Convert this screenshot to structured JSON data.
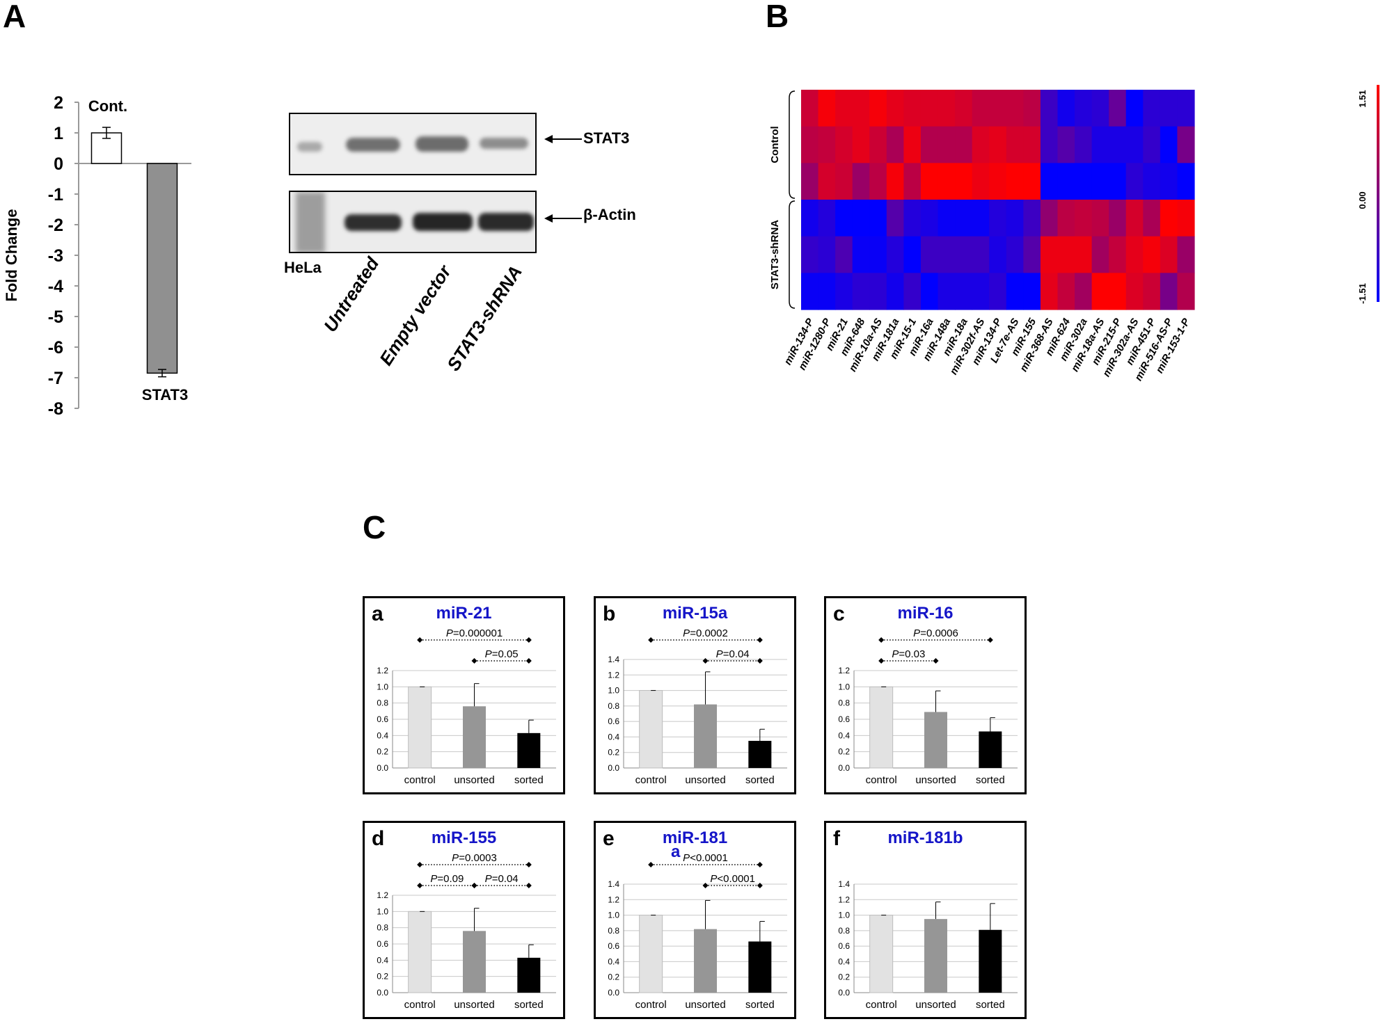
{
  "panels": {
    "A": {
      "letter": "A",
      "chart": {
        "type": "bar",
        "categories": [
          "Cont.",
          "STAT3"
        ],
        "values": [
          1.0,
          -6.85
        ],
        "errors": [
          0.18,
          0.12
        ],
        "colors": [
          "#ffffff",
          "#909090"
        ],
        "ylabel": "Fold Change",
        "ylim": [
          -8,
          2
        ],
        "yticks": [
          2,
          1,
          0,
          -1,
          -2,
          -3,
          -4,
          -5,
          -6,
          -7,
          -8
        ]
      },
      "blot": {
        "bands": [
          "STAT3",
          "β-Actin"
        ],
        "lanes": [
          "HeLa",
          "Untreated",
          "Empty vector",
          "STAT3-shRNA"
        ]
      }
    },
    "B": {
      "letter": "B",
      "row_groups": [
        "Control",
        "STAT3-shRNA"
      ],
      "columns": [
        "miR-134-P",
        "miR-1280-P",
        "miR-21",
        "miR-648",
        "miR-10a-AS",
        "miR-181a",
        "miR-15-1",
        "miR-16a",
        "miR-148a",
        "miR-18a",
        "miR-302f-AS",
        "miR-134-P",
        "Let-7e-AS",
        "miR-155",
        "miR-368-AS",
        "miR-624",
        "miR-302a",
        "miR-18a-AS",
        "miR-215-P",
        "miR-302a-AS",
        "miR-451-P",
        "miR-516-AS-P",
        "miR-153-1-P"
      ],
      "scale_labels": [
        "1.51",
        "0.00",
        "-1.51"
      ],
      "scale_colors": [
        "#ff0000",
        "#0000ff"
      ],
      "matrix": [
        [
          0.9,
          1.4,
          1.2,
          1.2,
          1.4,
          1.2,
          1.1,
          1.1,
          1.1,
          1.0,
          0.8,
          0.8,
          0.8,
          0.7,
          -0.8,
          -1.3,
          -1.1,
          -1.0,
          -0.3,
          -1.5,
          -1.0,
          -1.0,
          -1.0
        ],
        [
          0.7,
          0.8,
          1.0,
          1.2,
          0.9,
          0.5,
          1.3,
          0.6,
          0.6,
          0.6,
          1.1,
          1.2,
          1.0,
          1.0,
          -0.8,
          -0.5,
          -0.8,
          -1.2,
          -1.2,
          -1.2,
          -0.9,
          -1.5,
          -0.1
        ],
        [
          0.3,
          1.0,
          0.9,
          0.3,
          0.7,
          1.4,
          0.7,
          1.5,
          1.5,
          1.5,
          1.3,
          1.4,
          1.5,
          1.5,
          -1.5,
          -1.5,
          -1.5,
          -1.5,
          -1.5,
          -1.0,
          -1.2,
          -1.3,
          -1.5
        ],
        [
          -1.3,
          -1.1,
          -1.5,
          -1.5,
          -1.5,
          -0.5,
          -1.1,
          -1.2,
          -1.4,
          -1.4,
          -1.4,
          -1.1,
          -1.2,
          -0.8,
          0.2,
          0.7,
          0.8,
          0.7,
          0.3,
          1.0,
          0.5,
          1.5,
          1.4
        ],
        [
          -0.9,
          -1.0,
          -0.6,
          -1.4,
          -1.4,
          -1.1,
          -1.5,
          -0.8,
          -0.8,
          -0.8,
          -0.8,
          -1.2,
          -1.0,
          -0.5,
          1.3,
          1.3,
          1.3,
          0.4,
          0.8,
          1.2,
          1.4,
          1.1,
          0.3
        ],
        [
          -1.4,
          -1.4,
          -1.2,
          -1.0,
          -1.0,
          -1.3,
          -0.9,
          -1.5,
          -1.2,
          -1.2,
          -1.2,
          -1.0,
          -1.5,
          -1.5,
          1.2,
          0.8,
          0.4,
          1.5,
          1.5,
          1.1,
          0.9,
          -0.1,
          0.6
        ]
      ]
    },
    "C": {
      "letter": "C",
      "categories": [
        "control",
        "unsorted",
        "sorted"
      ],
      "bar_colors": [
        "#e2e2e2",
        "#969696",
        "#000000"
      ],
      "subplots": [
        {
          "letter": "a",
          "title": "miR-21",
          "values": [
            1.0,
            0.76,
            0.43
          ],
          "errors": [
            0.0,
            0.28,
            0.16
          ],
          "ylim": [
            0,
            1.2
          ],
          "yticks": [
            "1.2",
            "1.0",
            "0.8",
            "0.6",
            "0.4",
            "0.2",
            "0.0"
          ],
          "annotations": [
            {
              "text": "P=0.000001",
              "from": 0,
              "to": 2,
              "level": 0
            },
            {
              "text": "P=0.05",
              "from": 1,
              "to": 2,
              "level": 1
            }
          ]
        },
        {
          "letter": "b",
          "title": "miR-15a",
          "values": [
            1.0,
            0.82,
            0.35
          ],
          "errors": [
            0.0,
            0.42,
            0.15
          ],
          "ylim": [
            0,
            1.4
          ],
          "yticks": [
            "1.4",
            "1.2",
            "1.0",
            "0.8",
            "0.6",
            "0.4",
            "0.2",
            "0.0"
          ],
          "annotations": [
            {
              "text": "P=0.0002",
              "from": 0,
              "to": 2,
              "level": 0
            },
            {
              "text": "P=0.04",
              "from": 1,
              "to": 2,
              "level": 1
            }
          ]
        },
        {
          "letter": "c",
          "title": "miR-16",
          "values": [
            1.0,
            0.69,
            0.45
          ],
          "errors": [
            0.0,
            0.26,
            0.17
          ],
          "ylim": [
            0,
            1.2
          ],
          "yticks": [
            "1.2",
            "1.0",
            "0.8",
            "0.6",
            "0.4",
            "0.2",
            "0.0"
          ],
          "annotations": [
            {
              "text": "P=0.0006",
              "from": 0,
              "to": 2,
              "level": 0
            },
            {
              "text": "P=0.03",
              "from": 0,
              "to": 1,
              "level": 1
            }
          ]
        },
        {
          "letter": "d",
          "title": "miR-155",
          "values": [
            1.0,
            0.76,
            0.43
          ],
          "errors": [
            0.0,
            0.28,
            0.16
          ],
          "ylim": [
            0,
            1.2
          ],
          "yticks": [
            "1.2",
            "1.0",
            "0.8",
            "0.6",
            "0.4",
            "0.2",
            "0.0"
          ],
          "annotations": [
            {
              "text": "P=0.0003",
              "from": 0,
              "to": 2,
              "level": 0
            },
            {
              "text": "P=0.09",
              "from": 0,
              "to": 1,
              "level": 1
            },
            {
              "text": "P=0.04",
              "from": 1,
              "to": 2,
              "level": 1
            }
          ]
        },
        {
          "letter": "e",
          "title": "miR-181",
          "title_extra": "a",
          "values": [
            1.0,
            0.82,
            0.66
          ],
          "errors": [
            0.0,
            0.37,
            0.26
          ],
          "ylim": [
            0,
            1.4
          ],
          "yticks": [
            "1.4",
            "1.2",
            "1.0",
            "0.8",
            "0.6",
            "0.4",
            "0.2",
            "0.0"
          ],
          "annotations": [
            {
              "text": "P<0.0001",
              "from": 0,
              "to": 2,
              "level": 0
            },
            {
              "text": "P<0.0001",
              "from": 1,
              "to": 2,
              "level": 1
            }
          ]
        },
        {
          "letter": "f",
          "title": "miR-181b",
          "values": [
            1.0,
            0.95,
            0.81
          ],
          "errors": [
            0.0,
            0.22,
            0.34
          ],
          "ylim": [
            0,
            1.4
          ],
          "yticks": [
            "1.4",
            "1.2",
            "1.0",
            "0.8",
            "0.6",
            "0.4",
            "0.2",
            "0.0"
          ],
          "annotations": []
        }
      ]
    }
  }
}
